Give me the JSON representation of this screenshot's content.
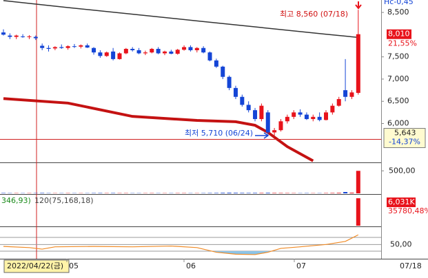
{
  "chart_data": {
    "type": "candlestick",
    "corner_label": "Hc-0,45",
    "ylim": [
      5125,
      8780
    ],
    "yticks": [
      {
        "value": 8500,
        "label": "8,500"
      },
      {
        "value": 7500,
        "label": "7,500"
      },
      {
        "value": 7000,
        "label": "7,000"
      },
      {
        "value": 6500,
        "label": "6,500"
      },
      {
        "value": 6000,
        "label": "6,000"
      }
    ],
    "up_color": "#e8131b",
    "down_color": "#1445d6",
    "ohlc": [
      [
        8050,
        8120,
        7980,
        8000
      ],
      [
        7980,
        8030,
        7900,
        7950
      ],
      [
        7950,
        8000,
        7900,
        7980
      ],
      [
        7960,
        8010,
        7930,
        7950
      ],
      [
        7950,
        7990,
        7900,
        7960
      ],
      [
        7950,
        7980,
        7880,
        7920
      ],
      [
        7750,
        7800,
        7650,
        7700
      ],
      [
        7700,
        7760,
        7620,
        7680
      ],
      [
        7690,
        7740,
        7650,
        7720
      ],
      [
        7720,
        7780,
        7680,
        7700
      ],
      [
        7700,
        7760,
        7660,
        7740
      ],
      [
        7740,
        7790,
        7700,
        7730
      ],
      [
        7730,
        7780,
        7690,
        7760
      ],
      [
        7760,
        7800,
        7700,
        7710
      ],
      [
        7700,
        7720,
        7550,
        7600
      ],
      [
        7600,
        7650,
        7480,
        7520
      ],
      [
        7520,
        7620,
        7500,
        7600
      ],
      [
        7620,
        7700,
        7420,
        7450
      ],
      [
        7450,
        7600,
        7440,
        7580
      ],
      [
        7580,
        7700,
        7560,
        7680
      ],
      [
        7680,
        7720,
        7620,
        7650
      ],
      [
        7650,
        7700,
        7560,
        7580
      ],
      [
        7580,
        7640,
        7540,
        7600
      ],
      [
        7600,
        7700,
        7580,
        7680
      ],
      [
        7680,
        7720,
        7560,
        7580
      ],
      [
        7580,
        7640,
        7540,
        7620
      ],
      [
        7620,
        7660,
        7560,
        7570
      ],
      [
        7570,
        7680,
        7550,
        7660
      ],
      [
        7660,
        7760,
        7640,
        7720
      ],
      [
        7720,
        7760,
        7620,
        7650
      ],
      [
        7650,
        7720,
        7600,
        7700
      ],
      [
        7700,
        7740,
        7580,
        7600
      ],
      [
        7600,
        7620,
        7400,
        7420
      ],
      [
        7420,
        7460,
        7250,
        7280
      ],
      [
        7280,
        7300,
        7000,
        7050
      ],
      [
        7050,
        7080,
        6750,
        6800
      ],
      [
        6800,
        6850,
        6550,
        6600
      ],
      [
        6600,
        6650,
        6380,
        6420
      ],
      [
        6420,
        6500,
        6250,
        6300
      ],
      [
        6300,
        6350,
        6050,
        6100
      ],
      [
        6100,
        6450,
        6050,
        6400
      ],
      [
        6250,
        6300,
        5750,
        5800
      ],
      [
        5800,
        5900,
        5710,
        5850
      ],
      [
        5850,
        6100,
        5820,
        6050
      ],
      [
        6050,
        6200,
        6000,
        6150
      ],
      [
        6150,
        6300,
        6100,
        6250
      ],
      [
        6250,
        6320,
        6150,
        6200
      ],
      [
        6200,
        6250,
        6080,
        6100
      ],
      [
        6100,
        6200,
        6050,
        6150
      ],
      [
        6150,
        6250,
        6050,
        6080
      ],
      [
        6080,
        6300,
        6070,
        6250
      ],
      [
        6250,
        6450,
        6200,
        6400
      ],
      [
        6400,
        6600,
        6380,
        6550
      ],
      [
        6750,
        7450,
        6500,
        6600
      ],
      [
        6600,
        6750,
        6550,
        6700
      ],
      [
        6690,
        8560,
        6650,
        8010
      ]
    ],
    "moving_averages": [
      {
        "color": "#333333",
        "x": [
          0,
          10,
          20,
          30,
          40,
          50,
          55
        ],
        "values": [
          8766,
          8610,
          8460,
          8310,
          8160,
          8010,
          7938
        ]
      },
      {
        "color": "#c41212",
        "x": [
          0,
          10,
          20,
          30,
          36,
          39,
          41,
          44,
          48
        ],
        "values": [
          6562,
          6460,
          6160,
          6070,
          6040,
          5960,
          5800,
          5480,
          5160
        ]
      }
    ],
    "high_note": "최고 8,560 (07/18)",
    "low_note": "최저 5,710 (06/24)",
    "last_price": {
      "value": 8010,
      "label": "8,010"
    },
    "last_change": "21,55%",
    "cursor_price": {
      "value": 5643,
      "label": "5,643"
    },
    "cursor_change": "-14,37%",
    "cursor_date": "2022/04/22(금)",
    "x_labels": [
      "05",
      "06",
      "07"
    ],
    "last_date": "07/18",
    "volume": {
      "ylim": [
        0,
        672
      ],
      "yticks": [
        {
          "value": 500,
          "label": "500,00"
        }
      ],
      "values": [
        8,
        6,
        6,
        5,
        6,
        6,
        9,
        6,
        5,
        5,
        6,
        5,
        5,
        5,
        7,
        8,
        6,
        8,
        6,
        6,
        5,
        5,
        5,
        6,
        5,
        5,
        5,
        6,
        6,
        5,
        5,
        6,
        8,
        9,
        12,
        14,
        12,
        10,
        9,
        10,
        9,
        12,
        9,
        8,
        7,
        6,
        5,
        6,
        5,
        5,
        7,
        9,
        12,
        30,
        15,
        500
      ]
    },
    "indicator": {
      "label_a": "346,93)",
      "label_b": "120(75,168,18)",
      "last_label": "6,031K",
      "last_pct": "35780,48%",
      "ylim": [
        0,
        6800
      ],
      "last_value": 6031
    },
    "oscillator": {
      "ylim": [
        15,
        95
      ],
      "yticks": [
        {
          "value": 50,
          "label": "50,00"
        }
      ],
      "color": "#f08a24",
      "x": [
        0,
        4,
        6,
        8,
        14,
        20,
        26,
        30,
        33,
        36,
        39,
        41,
        43,
        46,
        50,
        53,
        55
      ],
      "values": [
        45,
        42,
        38,
        44,
        45,
        44,
        46,
        42,
        30,
        25,
        24,
        30,
        40,
        44,
        50,
        58,
        75
      ]
    }
  }
}
